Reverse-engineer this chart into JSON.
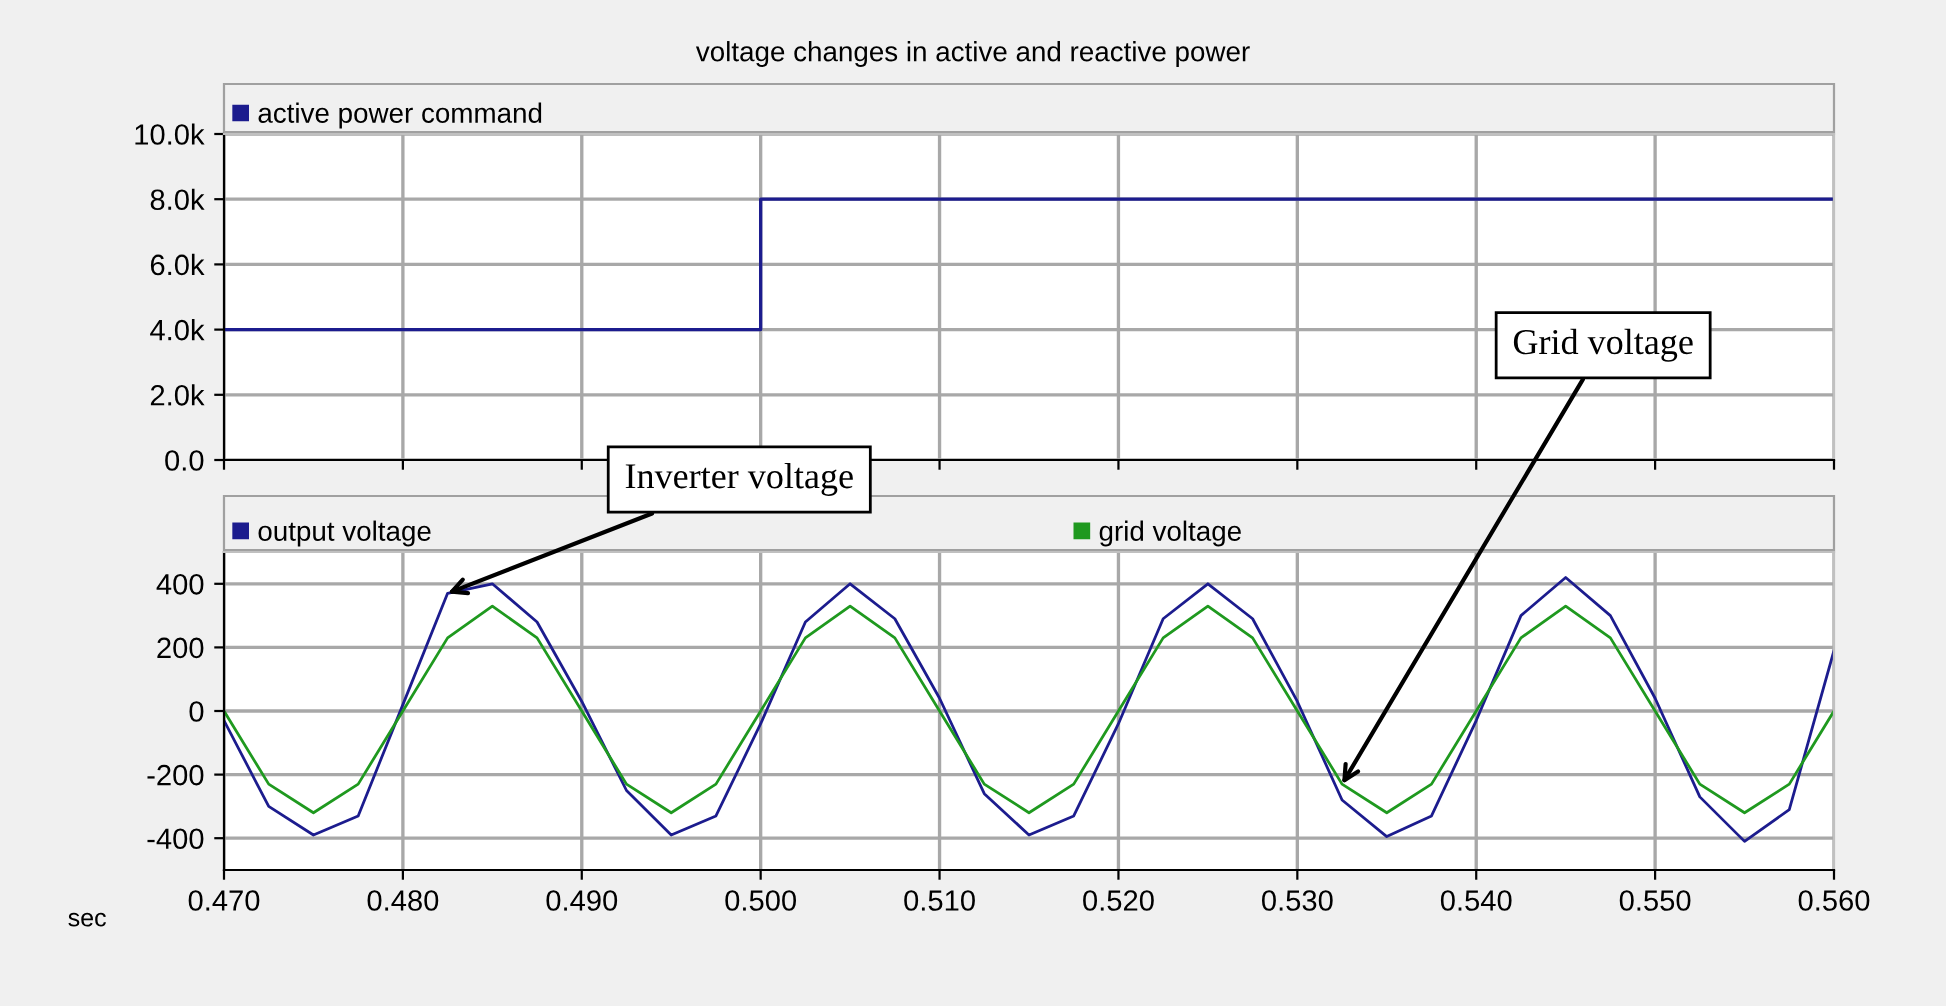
{
  "chart_data": [
    {
      "type": "step",
      "title": "voltage changes in active and reactive power",
      "tick_labels": "y",
      "grid": true,
      "legend": "top left",
      "marker": "none",
      "line_style": "solid",
      "x": [
        0.47,
        0.5,
        0.56
      ],
      "series": [
        {
          "name": "active power command",
          "color": "#1c1c8e",
          "values": [
            4000,
            8000,
            8000
          ]
        }
      ],
      "xlim": [
        0.47,
        0.56
      ],
      "xticks": [
        0.47,
        0.48,
        0.49,
        0.5,
        0.51,
        0.52,
        0.53,
        0.54,
        0.55,
        0.56
      ],
      "ylim": [
        0,
        10000
      ],
      "yticks": [
        {
          "value": 0,
          "label": "0.0"
        },
        {
          "value": 2000,
          "label": "2.0k"
        },
        {
          "value": 4000,
          "label": "4.0k"
        },
        {
          "value": 6000,
          "label": "6.0k"
        },
        {
          "value": 8000,
          "label": "8.0k"
        },
        {
          "value": 10000,
          "label": "10.0k"
        }
      ]
    },
    {
      "type": "line",
      "xlabel": "sec",
      "grid": true,
      "legend": "top left",
      "marker": "none",
      "line_style": "solid",
      "x": [
        0.47,
        0.4725,
        0.475,
        0.4775,
        0.48,
        0.4825,
        0.485,
        0.4875,
        0.49,
        0.4925,
        0.495,
        0.4975,
        0.5,
        0.5025,
        0.505,
        0.5075,
        0.51,
        0.5125,
        0.515,
        0.5175,
        0.52,
        0.5225,
        0.525,
        0.5275,
        0.53,
        0.5325,
        0.535,
        0.5375,
        0.54,
        0.5425,
        0.545,
        0.5475,
        0.55,
        0.5525,
        0.555,
        0.5575,
        0.56
      ],
      "series": [
        {
          "name": "output voltage",
          "color": "#1c1c8e",
          "values": [
            -30,
            -300,
            -390,
            -330,
            20,
            370,
            400,
            280,
            30,
            -250,
            -390,
            -330,
            -40,
            280,
            400,
            290,
            40,
            -260,
            -390,
            -330,
            -40,
            290,
            400,
            290,
            30,
            -280,
            -395,
            -330,
            -30,
            300,
            420,
            300,
            40,
            -270,
            -410,
            -310,
            190
          ]
        },
        {
          "name": "grid voltage",
          "color": "#1f991f",
          "values": [
            0,
            -230,
            -320,
            -230,
            0,
            230,
            330,
            230,
            0,
            -230,
            -320,
            -230,
            0,
            230,
            330,
            230,
            0,
            -230,
            -320,
            -230,
            0,
            230,
            330,
            230,
            0,
            -230,
            -320,
            -230,
            0,
            230,
            330,
            230,
            0,
            -230,
            -320,
            -230,
            0
          ]
        }
      ],
      "xlim": [
        0.47,
        0.56
      ],
      "xticks": [
        {
          "value": 0.47,
          "label": "0.470"
        },
        {
          "value": 0.48,
          "label": "0.480"
        },
        {
          "value": 0.49,
          "label": "0.490"
        },
        {
          "value": 0.5,
          "label": "0.500"
        },
        {
          "value": 0.51,
          "label": "0.510"
        },
        {
          "value": 0.52,
          "label": "0.520"
        },
        {
          "value": 0.53,
          "label": "0.530"
        },
        {
          "value": 0.54,
          "label": "0.540"
        },
        {
          "value": 0.55,
          "label": "0.550"
        },
        {
          "value": 0.56,
          "label": "0.560"
        }
      ],
      "ylim": [
        -500,
        500
      ],
      "yticks": [
        -400,
        -200,
        0,
        200,
        400
      ],
      "annotations": [
        {
          "text": "Inverter voltage",
          "x": 0.4825,
          "y": 370
        },
        {
          "text": "Grid voltage",
          "x": 0.5325,
          "y": -230
        }
      ]
    }
  ]
}
